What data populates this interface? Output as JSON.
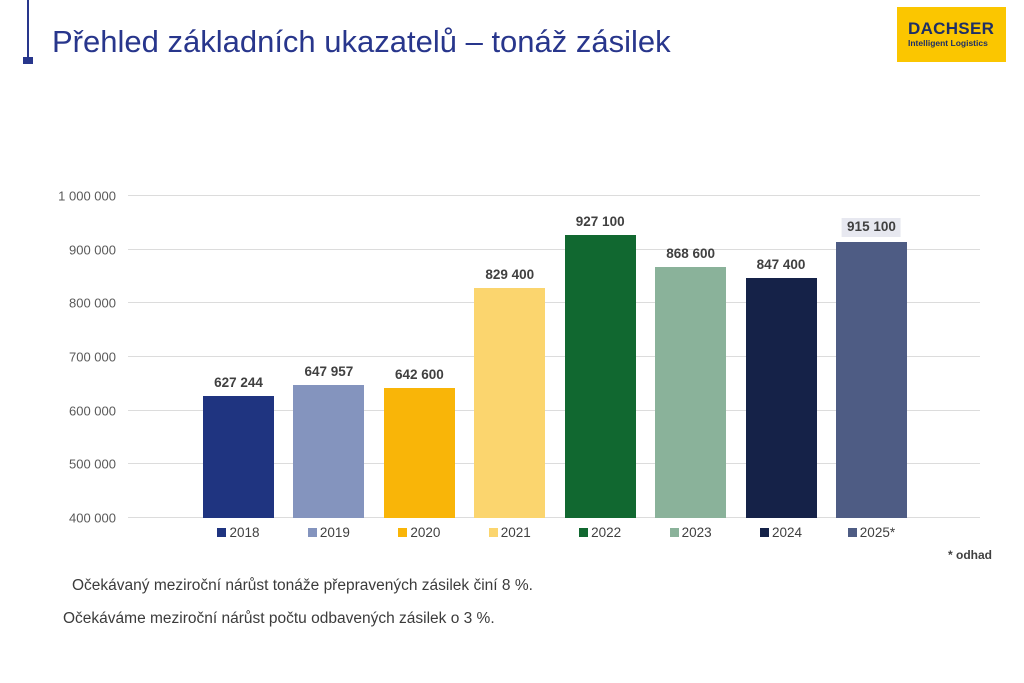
{
  "page": {
    "title": "Přehled základních ukazatelů – tonáž zásilek"
  },
  "logo": {
    "brand": "DACHSER",
    "tagline": "Intelligent Logistics",
    "bg_color": "#fbc600",
    "text_color": "#1e2f66"
  },
  "chart_data": {
    "type": "bar",
    "categories": [
      "2018",
      "2019",
      "2020",
      "2021",
      "2022",
      "2023",
      "2024",
      "2025*"
    ],
    "values": [
      627244,
      647957,
      642600,
      829400,
      927100,
      868600,
      847400,
      915100
    ],
    "value_labels": [
      "627 244",
      "647 957",
      "642 600",
      "829 400",
      "927 100",
      "868 600",
      "847 400",
      "915 100"
    ],
    "bar_colors": [
      "#1f3480",
      "#8494be",
      "#f9b508",
      "#fbd56e",
      "#116830",
      "#8ab29a",
      "#152248",
      "#4e5c84"
    ],
    "title": "Přehled základních ukazatelů – tonáž zásilek",
    "xlabel": "",
    "ylabel": "",
    "ylim": [
      400000,
      1000000
    ],
    "ytick_step": 100000,
    "ytick_labels": [
      "400 000",
      "500 000",
      "600 000",
      "700 000",
      "800 000",
      "900 000",
      "1 000 000"
    ],
    "grid": true,
    "legend_position": "bottom",
    "highlighted_label_index": 7,
    "highlight_bg": "#e7e8f0"
  },
  "footnote": "* odhad",
  "notes": {
    "line1": "Očekávaný meziroční nárůst tonáže přepravených zásilek činí 8 %.",
    "line2": "Očekáváme meziroční nárůst počtu odbavených zásilek o 3 %."
  }
}
